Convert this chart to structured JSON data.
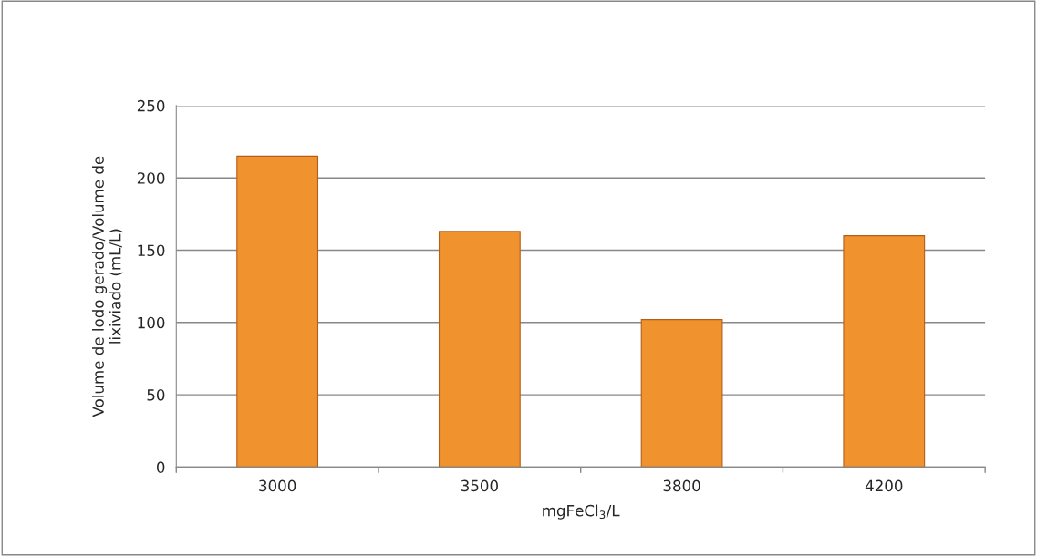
{
  "chart_data": {
    "type": "bar",
    "xlabel": "mgFeCl$_{3}$/L",
    "ylabel": "Volume de lodo gerado/Volume de\nlixiviado (mL/L)",
    "categories": [
      "3000",
      "3500",
      "3800",
      "4200"
    ],
    "series": [
      {
        "color": "#f0922e",
        "values": [
          215,
          163,
          102,
          160
        ]
      }
    ],
    "ylim": [
      0,
      250
    ],
    "yticks": [
      0,
      50,
      100,
      150,
      200,
      250
    ],
    "grid": "y"
  }
}
